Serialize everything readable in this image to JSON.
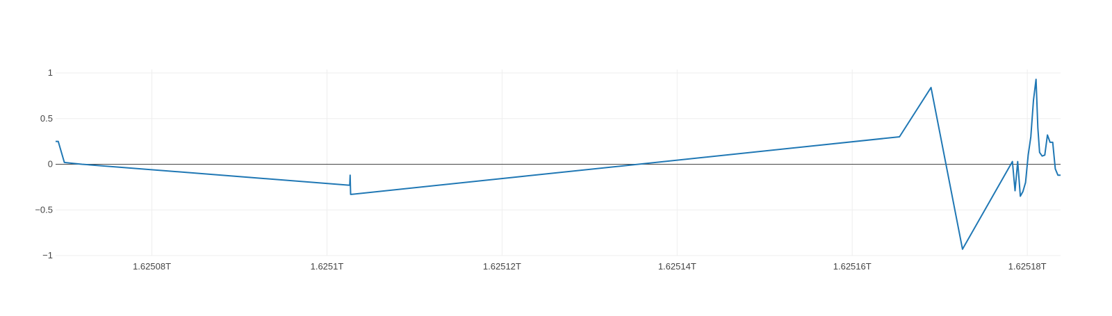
{
  "chart_data": {
    "type": "line",
    "title": "",
    "xlabel": "",
    "ylabel": "",
    "xlim": [
      1625069000000,
      1625183800000
    ],
    "ylim": [
      -1,
      1
    ],
    "x_ticks": [
      {
        "value": 1625080000000,
        "label": "1.62508T"
      },
      {
        "value": 1625100000000,
        "label": "1.6251T"
      },
      {
        "value": 1625120000000,
        "label": "1.62512T"
      },
      {
        "value": 1625140000000,
        "label": "1.62514T"
      },
      {
        "value": 1625160000000,
        "label": "1.62516T"
      },
      {
        "value": 1625180000000,
        "label": "1.62518T"
      }
    ],
    "y_ticks": [
      {
        "value": 1,
        "label": "1"
      },
      {
        "value": 0.5,
        "label": "0.5"
      },
      {
        "value": 0,
        "label": "0"
      },
      {
        "value": -0.5,
        "label": "−0.5"
      },
      {
        "value": -1,
        "label": "−1"
      }
    ],
    "grid": true,
    "zero_line": true,
    "colors": {
      "line": "#1f77b4",
      "grid": "#eeeeee",
      "zeroline": "#444444"
    },
    "series": [
      {
        "x": [
          1625069000000,
          1625069300000,
          1625070000000,
          1625071000000,
          1625072000000,
          1625102600000,
          1625102650000,
          1625102700000,
          1625102750000,
          1625165400000,
          1625169000000,
          1625172600000,
          1625178300000,
          1625178600000,
          1625178900000,
          1625179200000,
          1625179500000,
          1625179800000,
          1625180100000,
          1625180400000,
          1625180700000,
          1625181000000,
          1625181200000,
          1625181400000,
          1625181700000,
          1625182000000,
          1625182300000,
          1625182600000,
          1625182900000,
          1625183200000,
          1625183500000,
          1625183800000
        ],
        "y": [
          0.25,
          0.25,
          0.02,
          0.01,
          0.0,
          -0.23,
          -0.12,
          -0.33,
          -0.33,
          0.3,
          0.84,
          -0.93,
          0.03,
          -0.29,
          0.03,
          -0.35,
          -0.3,
          -0.2,
          0.1,
          0.3,
          0.7,
          0.93,
          0.4,
          0.13,
          0.09,
          0.1,
          0.32,
          0.24,
          0.24,
          -0.05,
          -0.12,
          -0.12
        ]
      }
    ]
  }
}
